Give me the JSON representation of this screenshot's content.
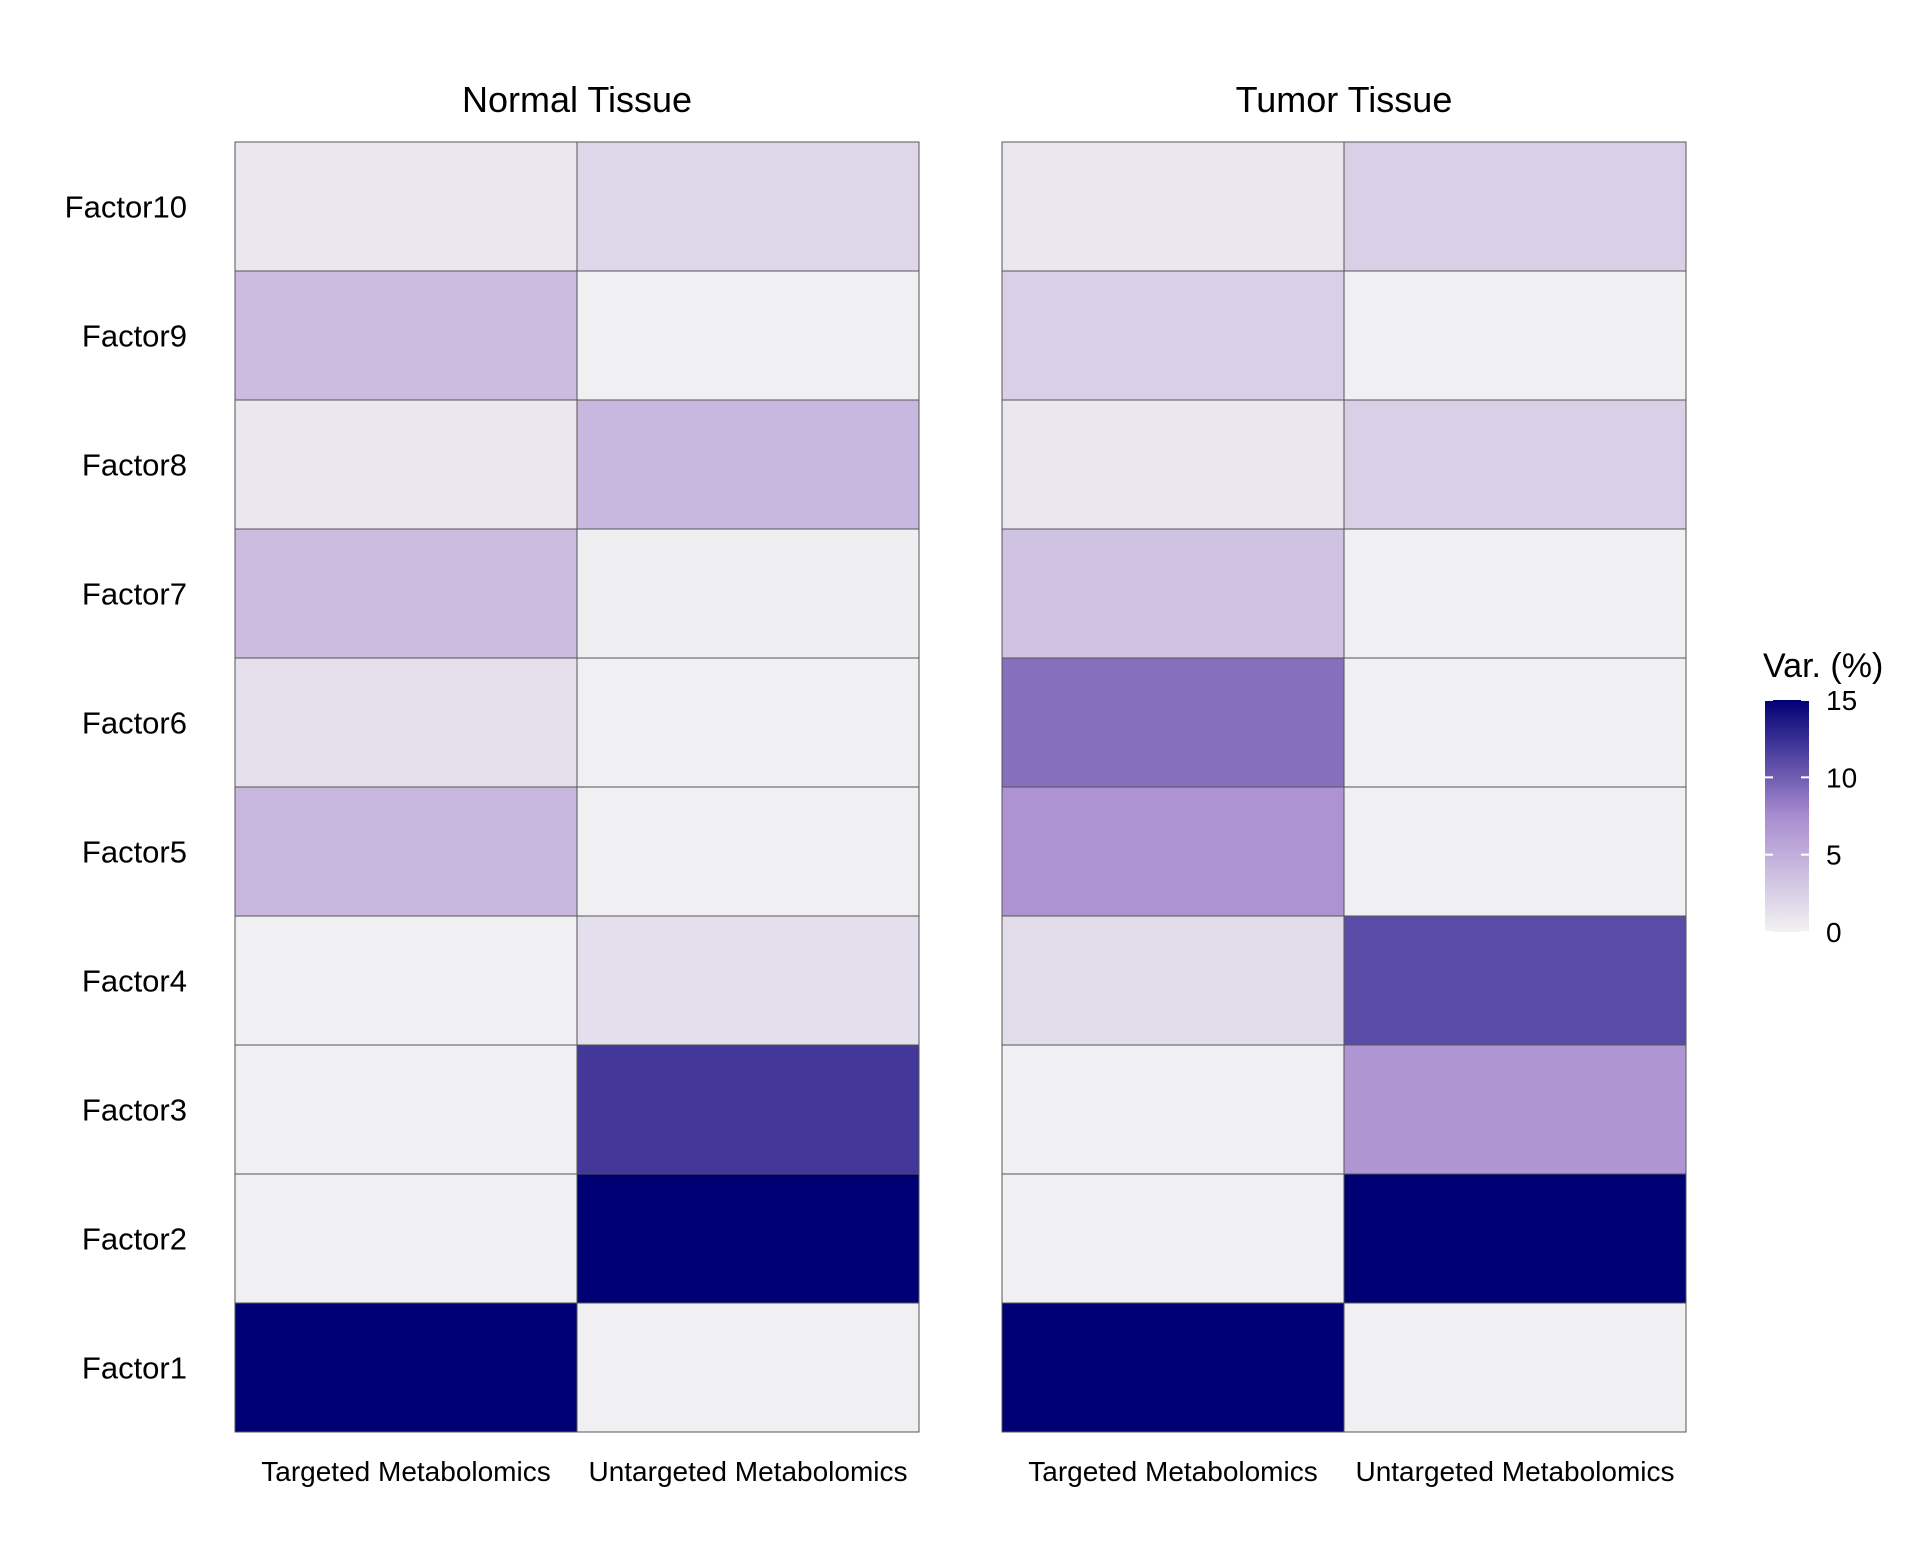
{
  "chart_data": {
    "type": "heatmap",
    "rows": [
      "Factor10",
      "Factor9",
      "Factor8",
      "Factor7",
      "Factor6",
      "Factor5",
      "Factor4",
      "Factor3",
      "Factor2",
      "Factor1"
    ],
    "columns": [
      "Targeted Metabolomics",
      "Untargeted Metabolomics"
    ],
    "panels": [
      {
        "title": "Normal Tissue",
        "values": [
          [
            0.8,
            2.0
          ],
          [
            4.0,
            0.2
          ],
          [
            0.8,
            4.3
          ],
          [
            4.0,
            0.3
          ],
          [
            1.3,
            0.2
          ],
          [
            4.3,
            0.2
          ],
          [
            0.2,
            1.4
          ],
          [
            0.2,
            12.0
          ],
          [
            0.2,
            15.0
          ],
          [
            15.0,
            0.2
          ]
        ]
      },
      {
        "title": "Tumor Tissue",
        "values": [
          [
            0.8,
            2.5
          ],
          [
            2.5,
            0.2
          ],
          [
            0.8,
            2.5
          ],
          [
            3.5,
            0.2
          ],
          [
            9.0,
            0.2
          ],
          [
            7.0,
            0.2
          ],
          [
            1.6,
            11.0
          ],
          [
            0.2,
            6.8
          ],
          [
            0.2,
            15.0
          ],
          [
            15.0,
            0.2
          ]
        ]
      }
    ],
    "legend": {
      "title": "Var. (%)",
      "ticks": [
        15,
        10,
        5,
        0
      ],
      "range": [
        0,
        15
      ],
      "low_color": "#f2f2f2",
      "high_color": "#000075",
      "placement": "right"
    }
  }
}
